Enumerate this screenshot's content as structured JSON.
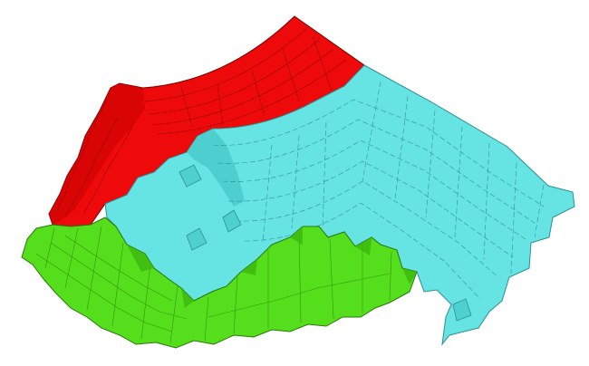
{
  "figure": {
    "kind": "3d-block-mesh",
    "regions": [
      {
        "id": "red-region",
        "color": "#ee0a0a",
        "edge": "#7a0000"
      },
      {
        "id": "cyan-region",
        "color": "#66e3e3",
        "edge": "#2f8f8f"
      },
      {
        "id": "green-region",
        "color": "#55de1c",
        "edge": "#2a7a0a"
      }
    ],
    "background": "#ffffff"
  }
}
